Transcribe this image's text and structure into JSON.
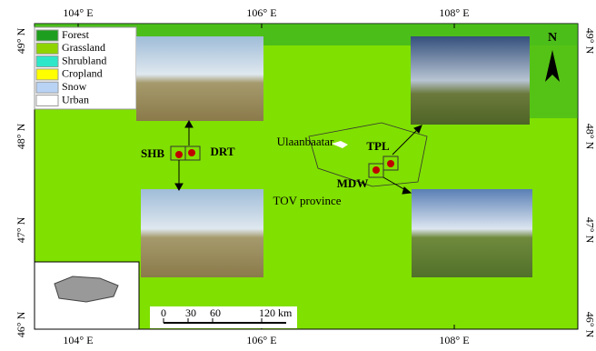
{
  "map": {
    "lon_labels": [
      "104° E",
      "106° E",
      "108° E"
    ],
    "lat_labels": [
      "49° N",
      "48° N",
      "47° N",
      "46° N"
    ],
    "legend": [
      {
        "label": "Forest",
        "color": "#1e9e1e"
      },
      {
        "label": "Grassland",
        "color": "#8fd400"
      },
      {
        "label": "Shrubland",
        "color": "#2ee6c8"
      },
      {
        "label": "Cropland",
        "color": "#ffff00"
      },
      {
        "label": "Snow",
        "color": "#b9d3f5"
      },
      {
        "label": "Urban",
        "color": "#ffffff"
      }
    ],
    "sites": [
      "SHB",
      "DRT",
      "TPL",
      "MDW"
    ],
    "places": [
      "Ulaanbaatar",
      "TOV province"
    ],
    "north": "N",
    "scale_labels": [
      "0",
      "30",
      "60",
      "120 km"
    ]
  }
}
